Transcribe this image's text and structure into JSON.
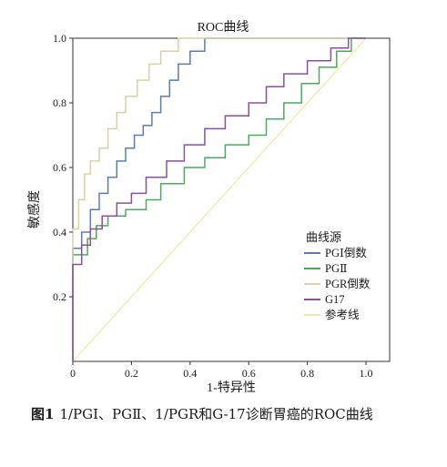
{
  "chart_data": {
    "type": "line",
    "title": "ROC曲线",
    "xlabel": "1-特异性",
    "ylabel": "敏感度",
    "xlim": [
      0,
      1
    ],
    "ylim": [
      0,
      1
    ],
    "x_ticks": [
      "0",
      "0.2",
      "0.4",
      "0.6",
      "0.8",
      "1.0"
    ],
    "y_ticks": [
      "0.2",
      "0.4",
      "0.6",
      "0.8",
      "1.0"
    ],
    "grid": false,
    "legend_title": "曲线源",
    "legend_position": "right",
    "series": [
      {
        "name": "PGⅠ倒数",
        "color": "#5a7bb5",
        "points": [
          [
            0,
            0
          ],
          [
            0,
            0.35
          ],
          [
            0.03,
            0.35
          ],
          [
            0.03,
            0.4
          ],
          [
            0.06,
            0.4
          ],
          [
            0.06,
            0.47
          ],
          [
            0.09,
            0.47
          ],
          [
            0.09,
            0.52
          ],
          [
            0.12,
            0.52
          ],
          [
            0.12,
            0.57
          ],
          [
            0.15,
            0.57
          ],
          [
            0.15,
            0.62
          ],
          [
            0.18,
            0.62
          ],
          [
            0.18,
            0.66
          ],
          [
            0.21,
            0.66
          ],
          [
            0.21,
            0.7
          ],
          [
            0.24,
            0.7
          ],
          [
            0.24,
            0.73
          ],
          [
            0.27,
            0.73
          ],
          [
            0.27,
            0.77
          ],
          [
            0.3,
            0.77
          ],
          [
            0.3,
            0.82
          ],
          [
            0.33,
            0.82
          ],
          [
            0.33,
            0.87
          ],
          [
            0.36,
            0.87
          ],
          [
            0.36,
            0.92
          ],
          [
            0.4,
            0.92
          ],
          [
            0.4,
            0.96
          ],
          [
            0.45,
            0.96
          ],
          [
            0.45,
            1.0
          ],
          [
            1.0,
            1.0
          ]
        ]
      },
      {
        "name": "PGⅡ",
        "color": "#4daa5c",
        "points": [
          [
            0,
            0
          ],
          [
            0,
            0.33
          ],
          [
            0.05,
            0.33
          ],
          [
            0.05,
            0.38
          ],
          [
            0.08,
            0.38
          ],
          [
            0.08,
            0.42
          ],
          [
            0.12,
            0.42
          ],
          [
            0.12,
            0.45
          ],
          [
            0.18,
            0.45
          ],
          [
            0.18,
            0.47
          ],
          [
            0.25,
            0.47
          ],
          [
            0.25,
            0.5
          ],
          [
            0.3,
            0.5
          ],
          [
            0.3,
            0.55
          ],
          [
            0.38,
            0.55
          ],
          [
            0.38,
            0.6
          ],
          [
            0.45,
            0.6
          ],
          [
            0.45,
            0.63
          ],
          [
            0.52,
            0.63
          ],
          [
            0.52,
            0.67
          ],
          [
            0.6,
            0.67
          ],
          [
            0.6,
            0.7
          ],
          [
            0.66,
            0.7
          ],
          [
            0.66,
            0.75
          ],
          [
            0.72,
            0.75
          ],
          [
            0.72,
            0.8
          ],
          [
            0.78,
            0.8
          ],
          [
            0.78,
            0.86
          ],
          [
            0.84,
            0.86
          ],
          [
            0.84,
            0.91
          ],
          [
            0.9,
            0.91
          ],
          [
            0.9,
            0.96
          ],
          [
            0.95,
            0.96
          ],
          [
            0.95,
            1.0
          ],
          [
            1.0,
            1.0
          ]
        ]
      },
      {
        "name": "PGR倒数",
        "color": "#d9d2a0",
        "points": [
          [
            0,
            0
          ],
          [
            0,
            0.41
          ],
          [
            0.02,
            0.41
          ],
          [
            0.02,
            0.5
          ],
          [
            0.04,
            0.5
          ],
          [
            0.04,
            0.58
          ],
          [
            0.06,
            0.58
          ],
          [
            0.06,
            0.62
          ],
          [
            0.09,
            0.62
          ],
          [
            0.09,
            0.66
          ],
          [
            0.12,
            0.66
          ],
          [
            0.12,
            0.72
          ],
          [
            0.15,
            0.72
          ],
          [
            0.15,
            0.77
          ],
          [
            0.18,
            0.77
          ],
          [
            0.18,
            0.82
          ],
          [
            0.22,
            0.82
          ],
          [
            0.22,
            0.87
          ],
          [
            0.26,
            0.87
          ],
          [
            0.26,
            0.92
          ],
          [
            0.3,
            0.92
          ],
          [
            0.3,
            0.96
          ],
          [
            0.36,
            0.96
          ],
          [
            0.36,
            1.0
          ],
          [
            1.0,
            1.0
          ]
        ]
      },
      {
        "name": "G17",
        "color": "#8b4fa0",
        "points": [
          [
            0,
            0
          ],
          [
            0,
            0.3
          ],
          [
            0.03,
            0.3
          ],
          [
            0.03,
            0.36
          ],
          [
            0.06,
            0.36
          ],
          [
            0.06,
            0.41
          ],
          [
            0.1,
            0.41
          ],
          [
            0.1,
            0.45
          ],
          [
            0.15,
            0.45
          ],
          [
            0.15,
            0.49
          ],
          [
            0.2,
            0.49
          ],
          [
            0.2,
            0.52
          ],
          [
            0.25,
            0.52
          ],
          [
            0.25,
            0.57
          ],
          [
            0.32,
            0.57
          ],
          [
            0.32,
            0.62
          ],
          [
            0.38,
            0.62
          ],
          [
            0.38,
            0.67
          ],
          [
            0.45,
            0.67
          ],
          [
            0.45,
            0.72
          ],
          [
            0.52,
            0.72
          ],
          [
            0.52,
            0.76
          ],
          [
            0.6,
            0.76
          ],
          [
            0.6,
            0.8
          ],
          [
            0.66,
            0.8
          ],
          [
            0.66,
            0.85
          ],
          [
            0.72,
            0.85
          ],
          [
            0.72,
            0.89
          ],
          [
            0.8,
            0.89
          ],
          [
            0.8,
            0.93
          ],
          [
            0.88,
            0.93
          ],
          [
            0.88,
            0.97
          ],
          [
            0.94,
            0.97
          ],
          [
            0.94,
            1.0
          ],
          [
            1.0,
            1.0
          ]
        ]
      },
      {
        "name": "参考线",
        "color": "#eeea9e",
        "points": [
          [
            0,
            0
          ],
          [
            1,
            1
          ]
        ]
      }
    ]
  },
  "caption": {
    "figure_no": "图1",
    "text": "1/PGⅠ、PGⅡ、1/PGR和G-17诊断胃癌的ROC曲线"
  }
}
